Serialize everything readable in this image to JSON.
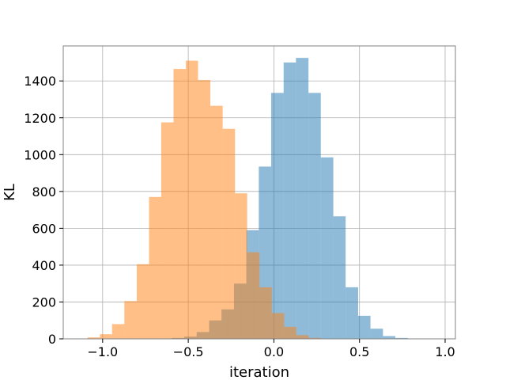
{
  "chart_data": {
    "type": "bar",
    "title": "",
    "xlabel": "iteration",
    "ylabel": "KL",
    "xlim": [
      -1.23,
      1.06
    ],
    "ylim": [
      0,
      1590
    ],
    "xticks": [
      -1.0,
      -0.5,
      0.0,
      0.5,
      1.0
    ],
    "xtick_labels": [
      "−1.0",
      "−0.5",
      "0.0",
      "0.5",
      "1.0"
    ],
    "yticks": [
      0,
      200,
      400,
      600,
      800,
      1000,
      1200,
      1400
    ],
    "ytick_labels": [
      "0",
      "200",
      "400",
      "600",
      "800",
      "1000",
      "1200",
      "1400"
    ],
    "grid": true,
    "legend": "none",
    "series": [
      {
        "color": "#1f77b4",
        "opacity": 0.5,
        "bins": [
          {
            "x0": -0.668,
            "x1": -0.596,
            "count": 1
          },
          {
            "x0": -0.596,
            "x1": -0.523,
            "count": 5
          },
          {
            "x0": -0.523,
            "x1": -0.451,
            "count": 12
          },
          {
            "x0": -0.451,
            "x1": -0.378,
            "count": 37
          },
          {
            "x0": -0.378,
            "x1": -0.306,
            "count": 100
          },
          {
            "x0": -0.306,
            "x1": -0.233,
            "count": 160
          },
          {
            "x0": -0.233,
            "x1": -0.161,
            "count": 300
          },
          {
            "x0": -0.161,
            "x1": -0.088,
            "count": 590
          },
          {
            "x0": -0.088,
            "x1": -0.016,
            "count": 935
          },
          {
            "x0": -0.016,
            "x1": 0.057,
            "count": 1335
          },
          {
            "x0": 0.057,
            "x1": 0.129,
            "count": 1500
          },
          {
            "x0": 0.129,
            "x1": 0.202,
            "count": 1525
          },
          {
            "x0": 0.202,
            "x1": 0.274,
            "count": 1335
          },
          {
            "x0": 0.274,
            "x1": 0.347,
            "count": 985
          },
          {
            "x0": 0.347,
            "x1": 0.419,
            "count": 665
          },
          {
            "x0": 0.419,
            "x1": 0.492,
            "count": 280
          },
          {
            "x0": 0.492,
            "x1": 0.564,
            "count": 125
          },
          {
            "x0": 0.564,
            "x1": 0.637,
            "count": 55
          },
          {
            "x0": 0.637,
            "x1": 0.709,
            "count": 15
          },
          {
            "x0": 0.709,
            "x1": 0.782,
            "count": 5
          },
          {
            "x0": 0.782,
            "x1": 0.854,
            "count": 2
          },
          {
            "x0": 0.854,
            "x1": 0.927,
            "count": 1
          }
        ]
      },
      {
        "color": "#ff7f0e",
        "opacity": 0.5,
        "bins": [
          {
            "x0": -1.16,
            "x1": -1.088,
            "count": 2
          },
          {
            "x0": -1.088,
            "x1": -1.016,
            "count": 8
          },
          {
            "x0": -1.016,
            "x1": -0.945,
            "count": 25
          },
          {
            "x0": -0.945,
            "x1": -0.873,
            "count": 80
          },
          {
            "x0": -0.873,
            "x1": -0.801,
            "count": 205
          },
          {
            "x0": -0.801,
            "x1": -0.729,
            "count": 405
          },
          {
            "x0": -0.729,
            "x1": -0.658,
            "count": 770
          },
          {
            "x0": -0.658,
            "x1": -0.586,
            "count": 1175
          },
          {
            "x0": -0.586,
            "x1": -0.514,
            "count": 1465
          },
          {
            "x0": -0.514,
            "x1": -0.443,
            "count": 1510
          },
          {
            "x0": -0.443,
            "x1": -0.371,
            "count": 1405
          },
          {
            "x0": -0.371,
            "x1": -0.299,
            "count": 1265
          },
          {
            "x0": -0.299,
            "x1": -0.227,
            "count": 1140
          },
          {
            "x0": -0.227,
            "x1": -0.156,
            "count": 790
          },
          {
            "x0": -0.156,
            "x1": -0.084,
            "count": 470
          },
          {
            "x0": -0.084,
            "x1": -0.012,
            "count": 280
          },
          {
            "x0": -0.012,
            "x1": 0.06,
            "count": 140
          },
          {
            "x0": 0.06,
            "x1": 0.131,
            "count": 65
          },
          {
            "x0": 0.131,
            "x1": 0.203,
            "count": 20
          },
          {
            "x0": 0.203,
            "x1": 0.275,
            "count": 5
          },
          {
            "x0": 0.275,
            "x1": 0.347,
            "count": 2
          }
        ]
      }
    ]
  }
}
